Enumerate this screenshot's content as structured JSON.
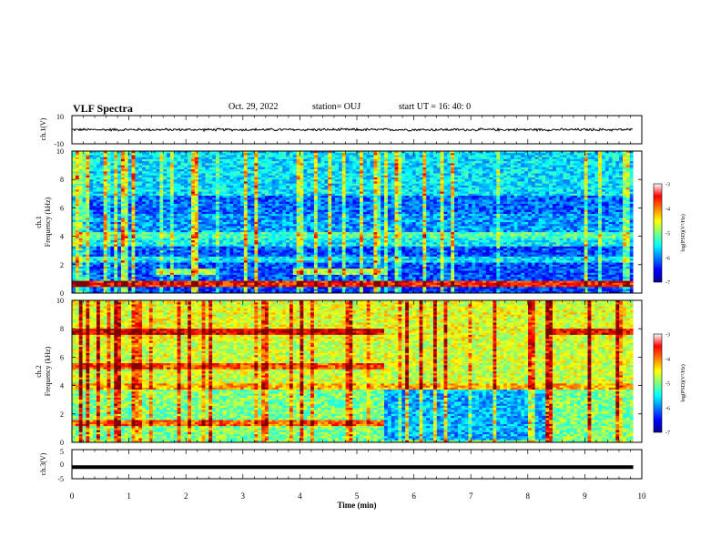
{
  "header": {
    "title": "VLF Spectra",
    "date": "Oct. 29, 2022",
    "station": "station= OUJ",
    "start": "start  UT =   16: 40: 0"
  },
  "chart_data": [
    {
      "type": "line",
      "panel": "ch1-waveform",
      "ylabel": "ch.1(V)",
      "ylim": [
        -10,
        10
      ],
      "yticks": [
        "10",
        "-10"
      ],
      "xlim": [
        0,
        10
      ],
      "description_level": 0,
      "amplitude": 0.7
    },
    {
      "type": "heatmap",
      "panel": "ch1-spectrogram",
      "ylabel_line1": "ch.1",
      "ylabel_line2": "Frequency  (kHz)",
      "ylim": [
        0,
        10
      ],
      "yticks": [
        "0",
        "2",
        "4",
        "6",
        "8",
        "10"
      ],
      "xlim": [
        0,
        9.85
      ],
      "colorbar": {
        "label": "log(PSD)(V²/Hz)",
        "ticks": [
          "-3",
          "-4",
          "-5",
          "-6",
          "-7"
        ],
        "range": [
          -7,
          -3
        ]
      },
      "background_level_by_freq": [
        {
          "f": [
            0,
            0.4
          ],
          "level": -6.3
        },
        {
          "f": [
            0.4,
            0.9
          ],
          "level": -6.9
        },
        {
          "f": [
            0.9,
            3.3
          ],
          "level": -6.2
        },
        {
          "f": [
            3.3,
            4.0
          ],
          "level": -5.5
        },
        {
          "f": [
            4.0,
            5.6
          ],
          "level": -5.9
        },
        {
          "f": [
            5.6,
            6.8
          ],
          "level": -6.1
        },
        {
          "f": [
            6.8,
            10
          ],
          "level": -5.6
        }
      ],
      "bands": [
        {
          "f": 1.5,
          "t": [
            1.5,
            2.5
          ],
          "level": -4.9
        },
        {
          "f": 1.5,
          "t": [
            3.9,
            5.5
          ],
          "level": -4.9
        },
        {
          "f": 4.1,
          "t": [
            0,
            9.85
          ],
          "level": -5.2
        },
        {
          "f": 2.4,
          "t": [
            0,
            9.85
          ],
          "level": -5.6
        },
        {
          "f": 0.65,
          "t": [
            0,
            9.85
          ],
          "level": -3.6
        }
      ]
    },
    {
      "type": "heatmap",
      "panel": "ch2-spectrogram",
      "ylabel_line1": "ch.2",
      "ylabel_line2": "Frequency  (kHz)",
      "ylim": [
        0,
        10
      ],
      "yticks": [
        "0",
        "2",
        "4",
        "6",
        "8",
        "10"
      ],
      "xlim": [
        0,
        9.85
      ],
      "colorbar": {
        "label": "log(PSD)(V²/Hz)",
        "ticks": [
          "-3",
          "-4",
          "-5",
          "-6",
          "-7"
        ],
        "range": [
          -7,
          -3
        ]
      },
      "background_level_by_freq": [
        {
          "f": [
            0,
            4.0
          ],
          "level": -5.0
        },
        {
          "f": [
            4.0,
            7.2
          ],
          "level": -4.7
        },
        {
          "f": [
            7.2,
            10
          ],
          "level": -4.6
        }
      ],
      "quiet_interval": {
        "t": [
          5.45,
          8.3
        ],
        "f": [
          0.2,
          4.0
        ],
        "level": -5.8
      },
      "bands": [
        {
          "f": 7.8,
          "t": [
            0,
            5.45
          ],
          "level": -3.4
        },
        {
          "f": 7.8,
          "t": [
            8.3,
            9.85
          ],
          "level": -3.4
        },
        {
          "f": 5.3,
          "t": [
            0,
            5.45
          ],
          "level": -3.8
        },
        {
          "f": 1.3,
          "t": [
            0,
            5.45
          ],
          "level": -3.9
        },
        {
          "f": 3.9,
          "t": [
            0,
            9.85
          ],
          "level": -4.2
        }
      ]
    },
    {
      "type": "line",
      "panel": "ch3-level",
      "ylabel": "ch.3(V)",
      "ylim": [
        -5,
        5
      ],
      "yticks": [
        "5",
        "0",
        "-5"
      ],
      "xlim": [
        0,
        10
      ],
      "description_level": -1,
      "xlabel": "Time  (min)",
      "xticks": [
        "0",
        "1",
        "2",
        "3",
        "4",
        "5",
        "6",
        "7",
        "8",
        "9",
        "10"
      ]
    }
  ]
}
